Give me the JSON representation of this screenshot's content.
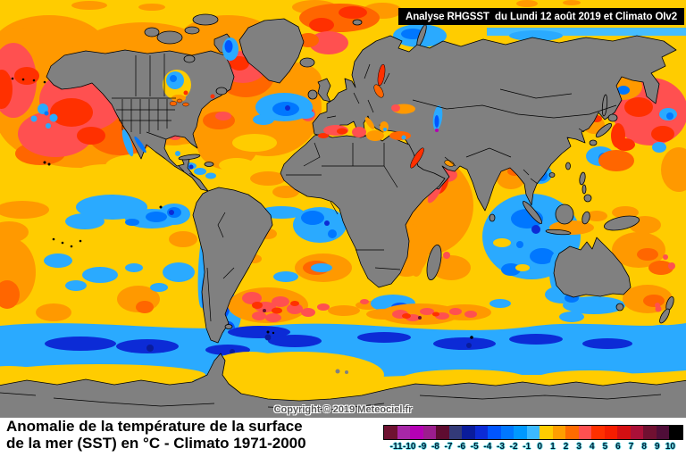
{
  "banner": {
    "title": "Analyse RHGSST  du Lundi 12 août 2019 et Climato OIv2"
  },
  "map": {
    "copyright": "Copyright © 2019 Meteociel.fr"
  },
  "caption": {
    "line1": "Anomalie de la température de la surface",
    "line2": "de la mer (SST) en °C - Climato 1971-2000"
  },
  "legend": {
    "tick_labels": [
      "-11",
      "-10",
      "-9",
      "-8",
      "-7",
      "-6",
      "-5",
      "-4",
      "-3",
      "-2",
      "-1",
      "0",
      "1",
      "2",
      "3",
      "4",
      "5",
      "6",
      "7",
      "8",
      "9",
      "10"
    ],
    "segments": [
      {
        "color": "#6E1231",
        "pattern": "dots-dark"
      },
      {
        "color": "#A727A7",
        "pattern": "grid"
      },
      {
        "color": "#B400B4",
        "pattern": null
      },
      {
        "color": "#9B1D8D",
        "pattern": "dots-dark"
      },
      {
        "color": "#5E0C30",
        "pattern": null
      },
      {
        "color": "#333A78",
        "pattern": "speckle"
      },
      {
        "color": "#0A1C9C",
        "pattern": null
      },
      {
        "color": "#0C2BD6",
        "pattern": null
      },
      {
        "color": "#0055FF",
        "pattern": null
      },
      {
        "color": "#0077FF",
        "pattern": null
      },
      {
        "color": "#0099FF",
        "pattern": null
      },
      {
        "color": "#3CB9FF",
        "pattern": null
      },
      {
        "color": "#FFCC00",
        "pattern": null
      },
      {
        "color": "#FF9E00",
        "pattern": null
      },
      {
        "color": "#FF6B00",
        "pattern": null
      },
      {
        "color": "#FF5050",
        "pattern": null
      },
      {
        "color": "#FF3000",
        "pattern": "dots-light"
      },
      {
        "color": "#F51D00",
        "pattern": null
      },
      {
        "color": "#D40F12",
        "pattern": "dots-light"
      },
      {
        "color": "#AA1038",
        "pattern": "dots-dark"
      },
      {
        "color": "#701031",
        "pattern": null
      },
      {
        "color": "#4F0D38",
        "pattern": null
      },
      {
        "color": "#000000",
        "pattern": null
      }
    ]
  },
  "colors": {
    "land": "#808080",
    "coastline": "#000000",
    "ocean_base": "#FFCC00",
    "banner_bg": "#000000",
    "banner_text": "#FFFFFF"
  }
}
